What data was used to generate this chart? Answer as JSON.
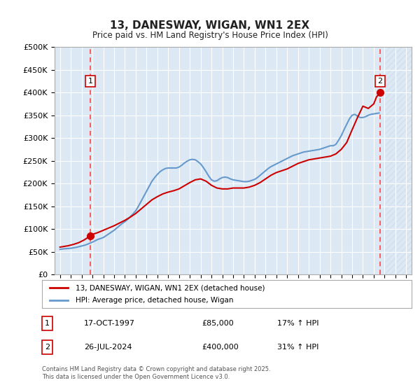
{
  "title": "13, DANESWAY, WIGAN, WN1 2EX",
  "subtitle": "Price paid vs. HM Land Registry's House Price Index (HPI)",
  "background_color": "#ffffff",
  "plot_bg_color": "#dce9f5",
  "grid_color": "#ffffff",
  "hatch_color": "#c8d8e8",
  "ylim": [
    0,
    500000
  ],
  "yticks": [
    0,
    50000,
    100000,
    150000,
    200000,
    250000,
    300000,
    350000,
    400000,
    450000,
    500000
  ],
  "ytick_labels": [
    "£0",
    "£50K",
    "£100K",
    "£150K",
    "£200K",
    "£250K",
    "£300K",
    "£350K",
    "£400K",
    "£450K",
    "£500K"
  ],
  "xlim_start": 1994.5,
  "xlim_end": 2027.5,
  "xticks": [
    1995,
    1996,
    1997,
    1998,
    1999,
    2000,
    2001,
    2002,
    2003,
    2004,
    2005,
    2006,
    2007,
    2008,
    2009,
    2010,
    2011,
    2012,
    2013,
    2014,
    2015,
    2016,
    2017,
    2018,
    2019,
    2020,
    2021,
    2022,
    2023,
    2024,
    2025,
    2026,
    2027
  ],
  "sale1_x": 1997.8,
  "sale1_y": 85000,
  "sale2_x": 2024.58,
  "sale2_y": 400000,
  "sale1_label": "1",
  "sale2_label": "2",
  "red_line_color": "#cc0000",
  "blue_line_color": "#6699cc",
  "dashed_red_color": "#ff4444",
  "legend_entry1": "13, DANESWAY, WIGAN, WN1 2EX (detached house)",
  "legend_entry2": "HPI: Average price, detached house, Wigan",
  "table_row1_num": "1",
  "table_row1_date": "17-OCT-1997",
  "table_row1_price": "£85,000",
  "table_row1_hpi": "17% ↑ HPI",
  "table_row2_num": "2",
  "table_row2_date": "26-JUL-2024",
  "table_row2_price": "£400,000",
  "table_row2_hpi": "31% ↑ HPI",
  "footer": "Contains HM Land Registry data © Crown copyright and database right 2025.\nThis data is licensed under the Open Government Licence v3.0.",
  "hpi_data_x": [
    1995.0,
    1995.25,
    1995.5,
    1995.75,
    1996.0,
    1996.25,
    1996.5,
    1996.75,
    1997.0,
    1997.25,
    1997.5,
    1997.75,
    1998.0,
    1998.25,
    1998.5,
    1998.75,
    1999.0,
    1999.25,
    1999.5,
    1999.75,
    2000.0,
    2000.25,
    2000.5,
    2000.75,
    2001.0,
    2001.25,
    2001.5,
    2001.75,
    2002.0,
    2002.25,
    2002.5,
    2002.75,
    2003.0,
    2003.25,
    2003.5,
    2003.75,
    2004.0,
    2004.25,
    2004.5,
    2004.75,
    2005.0,
    2005.25,
    2005.5,
    2005.75,
    2006.0,
    2006.25,
    2006.5,
    2006.75,
    2007.0,
    2007.25,
    2007.5,
    2007.75,
    2008.0,
    2008.25,
    2008.5,
    2008.75,
    2009.0,
    2009.25,
    2009.5,
    2009.75,
    2010.0,
    2010.25,
    2010.5,
    2010.75,
    2011.0,
    2011.25,
    2011.5,
    2011.75,
    2012.0,
    2012.25,
    2012.5,
    2012.75,
    2013.0,
    2013.25,
    2013.5,
    2013.75,
    2014.0,
    2014.25,
    2014.5,
    2014.75,
    2015.0,
    2015.25,
    2015.5,
    2015.75,
    2016.0,
    2016.25,
    2016.5,
    2016.75,
    2017.0,
    2017.25,
    2017.5,
    2017.75,
    2018.0,
    2018.25,
    2018.5,
    2018.75,
    2019.0,
    2019.25,
    2019.5,
    2019.75,
    2020.0,
    2020.25,
    2020.5,
    2020.75,
    2021.0,
    2021.25,
    2021.5,
    2021.75,
    2022.0,
    2022.25,
    2022.5,
    2022.75,
    2023.0,
    2023.25,
    2023.5,
    2023.75,
    2024.0,
    2024.25,
    2024.5
  ],
  "hpi_data_y": [
    55000,
    56000,
    56500,
    57000,
    57500,
    58500,
    59500,
    61000,
    62500,
    64000,
    66000,
    68500,
    71000,
    74000,
    77000,
    79000,
    81000,
    85000,
    89000,
    93000,
    97000,
    102000,
    107000,
    112000,
    116000,
    121000,
    127000,
    133000,
    140000,
    150000,
    161000,
    172000,
    183000,
    194000,
    205000,
    213000,
    220000,
    226000,
    230000,
    233000,
    234000,
    234000,
    234000,
    234000,
    236000,
    240000,
    245000,
    249000,
    252000,
    253000,
    252000,
    248000,
    243000,
    235000,
    226000,
    216000,
    208000,
    205000,
    206000,
    210000,
    213000,
    214000,
    213000,
    210000,
    208000,
    207000,
    206000,
    205000,
    204000,
    204000,
    205000,
    207000,
    209000,
    213000,
    218000,
    223000,
    228000,
    233000,
    237000,
    240000,
    243000,
    246000,
    249000,
    252000,
    255000,
    258000,
    261000,
    263000,
    265000,
    267000,
    269000,
    270000,
    271000,
    272000,
    273000,
    274000,
    275000,
    277000,
    279000,
    281000,
    283000,
    283000,
    286000,
    295000,
    305000,
    318000,
    330000,
    342000,
    350000,
    352000,
    348000,
    345000,
    345000,
    347000,
    350000,
    352000,
    353000,
    354000,
    355000
  ],
  "red_line_x": [
    1995.0,
    1995.25,
    1995.5,
    1995.75,
    1996.0,
    1996.25,
    1996.5,
    1996.75,
    1997.0,
    1997.25,
    1997.5,
    1997.8,
    1998.0,
    1998.5,
    1999.0,
    1999.5,
    2000.0,
    2000.5,
    2001.0,
    2001.5,
    2002.0,
    2002.5,
    2003.0,
    2003.5,
    2004.0,
    2004.5,
    2005.0,
    2005.5,
    2006.0,
    2006.5,
    2007.0,
    2007.5,
    2008.0,
    2008.5,
    2009.0,
    2009.5,
    2010.0,
    2010.5,
    2011.0,
    2011.5,
    2012.0,
    2012.5,
    2013.0,
    2013.5,
    2014.0,
    2014.5,
    2015.0,
    2015.5,
    2016.0,
    2016.5,
    2017.0,
    2017.5,
    2018.0,
    2018.5,
    2019.0,
    2019.5,
    2020.0,
    2020.5,
    2021.0,
    2021.5,
    2022.0,
    2022.5,
    2023.0,
    2023.5,
    2024.0,
    2024.25,
    2024.58
  ],
  "red_line_y": [
    60000,
    61000,
    62000,
    63000,
    64500,
    66000,
    68000,
    70000,
    73000,
    76000,
    80000,
    85000,
    88000,
    92000,
    97000,
    102000,
    107000,
    113000,
    119000,
    126000,
    134000,
    144000,
    154000,
    164000,
    171000,
    177000,
    181000,
    184000,
    188000,
    195000,
    202000,
    208000,
    210000,
    205000,
    196000,
    190000,
    188000,
    188000,
    190000,
    190000,
    190000,
    192000,
    196000,
    202000,
    210000,
    218000,
    224000,
    228000,
    232000,
    238000,
    244000,
    248000,
    252000,
    254000,
    256000,
    258000,
    260000,
    265000,
    275000,
    290000,
    318000,
    345000,
    370000,
    365000,
    375000,
    390000,
    400000
  ]
}
